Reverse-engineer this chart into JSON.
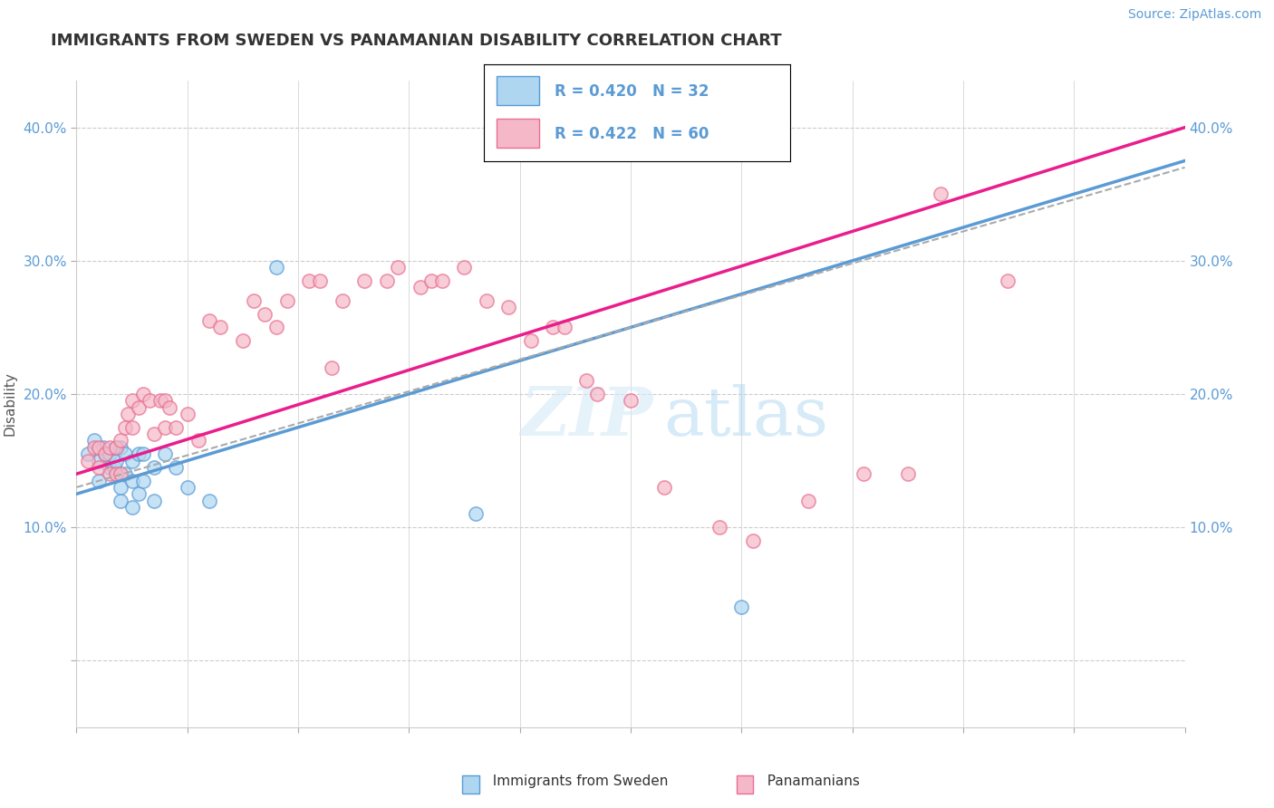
{
  "title": "IMMIGRANTS FROM SWEDEN VS PANAMANIAN DISABILITY CORRELATION CHART",
  "source": "Source: ZipAtlas.com",
  "ylabel": "Disability",
  "xlim": [
    0.0,
    0.5
  ],
  "ylim": [
    -0.05,
    0.435
  ],
  "color_blue": "#AED6F1",
  "color_pink": "#F1948A",
  "color_blue_line": "#5B9BD5",
  "color_pink_line": "#E91E8C",
  "color_gray_dash": "#AAAAAA",
  "legend_r1": "R = 0.420",
  "legend_n1": "N = 32",
  "legend_r2": "R = 0.422",
  "legend_n2": "N = 60",
  "blue_scatter_x": [
    0.005,
    0.008,
    0.01,
    0.01,
    0.012,
    0.013,
    0.015,
    0.015,
    0.017,
    0.018,
    0.018,
    0.02,
    0.02,
    0.02,
    0.022,
    0.022,
    0.025,
    0.025,
    0.025,
    0.028,
    0.028,
    0.03,
    0.03,
    0.035,
    0.035,
    0.04,
    0.045,
    0.05,
    0.06,
    0.09,
    0.18,
    0.3
  ],
  "blue_scatter_y": [
    0.155,
    0.165,
    0.135,
    0.15,
    0.16,
    0.155,
    0.145,
    0.155,
    0.145,
    0.15,
    0.16,
    0.12,
    0.13,
    0.16,
    0.14,
    0.155,
    0.115,
    0.135,
    0.15,
    0.125,
    0.155,
    0.135,
    0.155,
    0.12,
    0.145,
    0.155,
    0.145,
    0.13,
    0.12,
    0.295,
    0.11,
    0.04
  ],
  "pink_scatter_x": [
    0.005,
    0.008,
    0.01,
    0.01,
    0.013,
    0.015,
    0.015,
    0.018,
    0.018,
    0.02,
    0.02,
    0.022,
    0.023,
    0.025,
    0.025,
    0.028,
    0.03,
    0.033,
    0.035,
    0.038,
    0.04,
    0.04,
    0.042,
    0.045,
    0.05,
    0.055,
    0.06,
    0.065,
    0.075,
    0.08,
    0.085,
    0.09,
    0.095,
    0.105,
    0.11,
    0.115,
    0.12,
    0.13,
    0.14,
    0.145,
    0.155,
    0.16,
    0.165,
    0.175,
    0.185,
    0.195,
    0.205,
    0.215,
    0.22,
    0.23,
    0.235,
    0.25,
    0.265,
    0.29,
    0.305,
    0.33,
    0.355,
    0.375,
    0.39,
    0.42
  ],
  "pink_scatter_y": [
    0.15,
    0.16,
    0.145,
    0.16,
    0.155,
    0.14,
    0.16,
    0.14,
    0.16,
    0.14,
    0.165,
    0.175,
    0.185,
    0.175,
    0.195,
    0.19,
    0.2,
    0.195,
    0.17,
    0.195,
    0.175,
    0.195,
    0.19,
    0.175,
    0.185,
    0.165,
    0.255,
    0.25,
    0.24,
    0.27,
    0.26,
    0.25,
    0.27,
    0.285,
    0.285,
    0.22,
    0.27,
    0.285,
    0.285,
    0.295,
    0.28,
    0.285,
    0.285,
    0.295,
    0.27,
    0.265,
    0.24,
    0.25,
    0.25,
    0.21,
    0.2,
    0.195,
    0.13,
    0.1,
    0.09,
    0.12,
    0.14,
    0.14,
    0.35,
    0.285
  ],
  "blue_line_x": [
    0.0,
    0.5
  ],
  "blue_line_y": [
    0.125,
    0.375
  ],
  "pink_line_x": [
    0.0,
    0.5
  ],
  "pink_line_y": [
    0.14,
    0.4
  ],
  "dash_line_x": [
    0.0,
    0.5
  ],
  "dash_line_y": [
    0.13,
    0.37
  ]
}
